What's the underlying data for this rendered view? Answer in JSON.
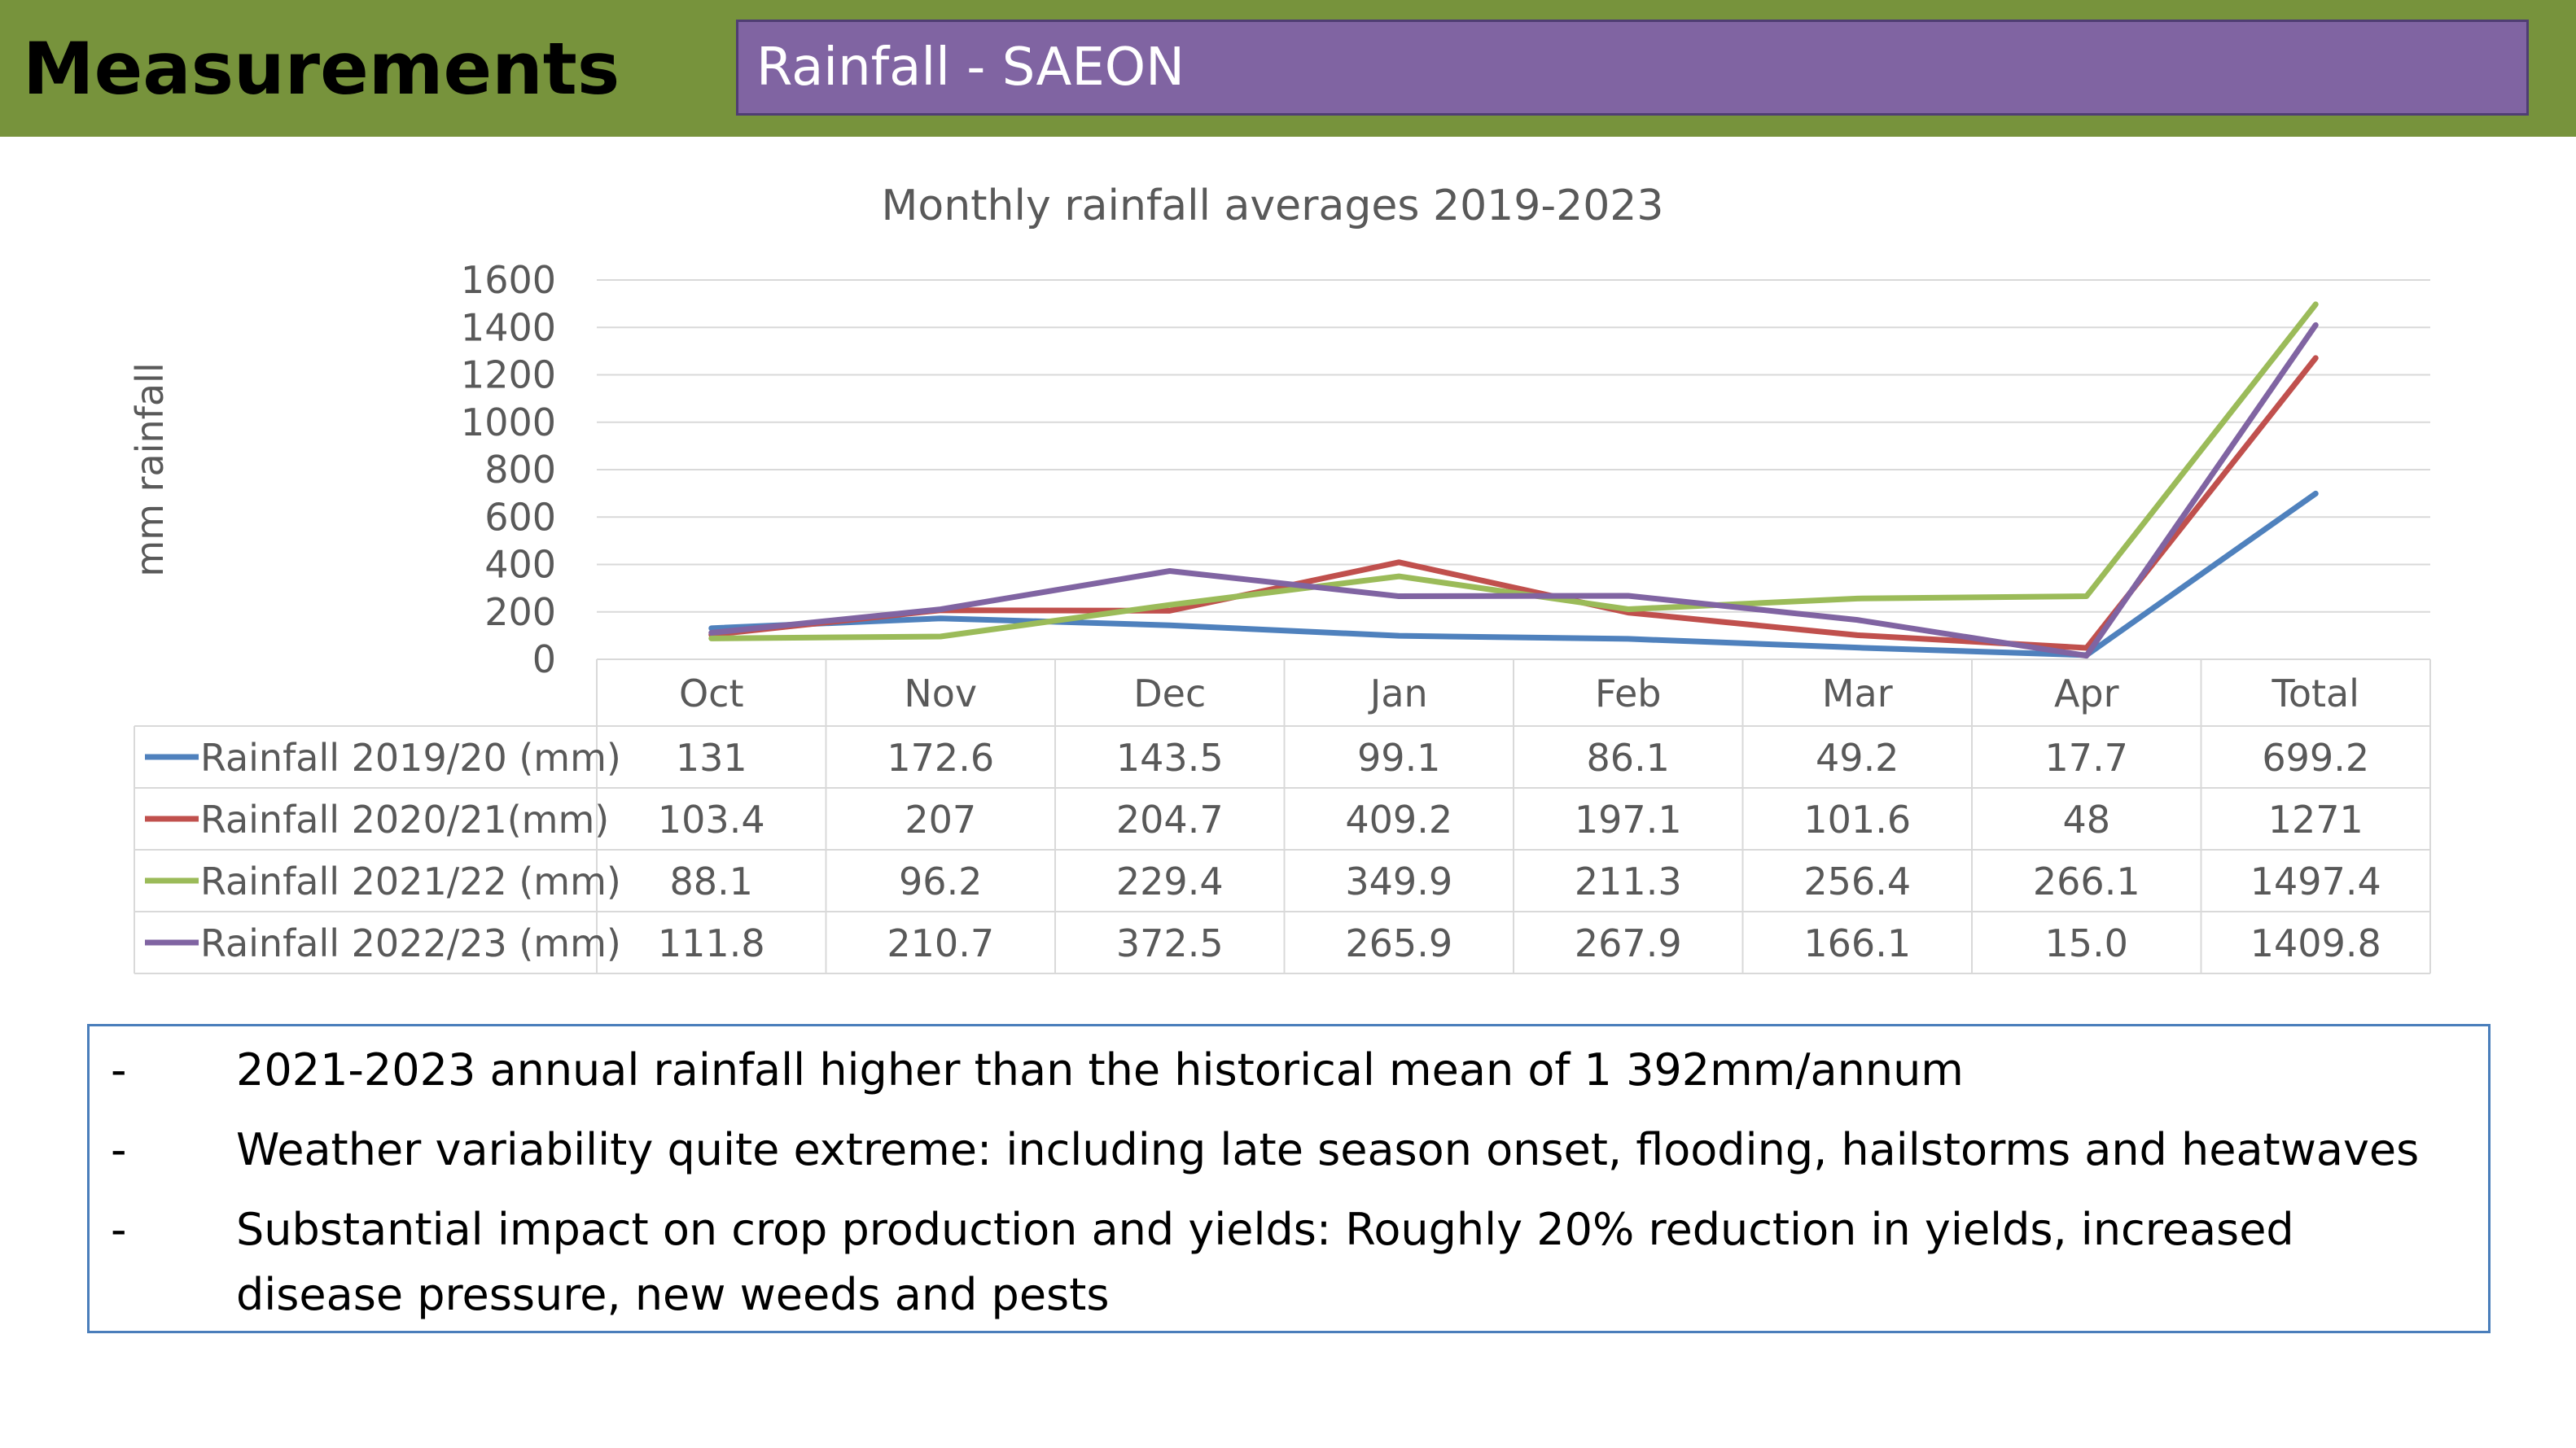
{
  "header": {
    "title": "Measurements",
    "subtitle": "Rainfall - SAEON"
  },
  "chart_data": {
    "type": "line",
    "title": "Monthly rainfall averages 2019-2023",
    "ylabel": "mm rainfall",
    "xlabel": "",
    "ylim": [
      0,
      1600
    ],
    "yticks": [
      0,
      200,
      400,
      600,
      800,
      1000,
      1200,
      1400,
      1600
    ],
    "grid": true,
    "legend": "data-table",
    "categories": [
      "Oct",
      "Nov",
      "Dec",
      "Jan",
      "Feb",
      "Mar",
      "Apr",
      "Total"
    ],
    "series": [
      {
        "name": "Rainfall 2019/20 (mm)",
        "color": "#4f81bd",
        "values": [
          131,
          172.6,
          143.5,
          99.1,
          86.1,
          49.2,
          17.7,
          699.2
        ],
        "labels": [
          "131",
          "172.6",
          "143.5",
          "99.1",
          "86.1",
          "49.2",
          "17.7",
          "699.2"
        ]
      },
      {
        "name": "Rainfall 2020/21(mm)",
        "color": "#c0504d",
        "values": [
          103.4,
          207,
          204.7,
          409.2,
          197.1,
          101.6,
          48,
          1271
        ],
        "labels": [
          "103.4",
          "207",
          "204.7",
          "409.2",
          "197.1",
          "101.6",
          "48",
          "1271"
        ]
      },
      {
        "name": "Rainfall 2021/22 (mm)",
        "color": "#9bbb59",
        "values": [
          88.1,
          96.2,
          229.4,
          349.9,
          211.3,
          256.4,
          266.1,
          1497.4
        ],
        "labels": [
          "88.1",
          "96.2",
          "229.4",
          "349.9",
          "211.3",
          "256.4",
          "266.1",
          "1497.4"
        ]
      },
      {
        "name": "Rainfall 2022/23 (mm)",
        "color": "#8064a2",
        "values": [
          111.8,
          210.7,
          372.5,
          265.9,
          267.9,
          166.1,
          15.0,
          1409.8
        ],
        "labels": [
          "111.8",
          "210.7",
          "372.5",
          "265.9",
          "267.9",
          "166.1",
          "15.0",
          "1409.8"
        ]
      }
    ]
  },
  "notes": [
    {
      "dash": "-",
      "text": "2021-2023 annual rainfall higher than the historical mean of 1 392mm/annum"
    },
    {
      "dash": "-",
      "text": "Weather variability quite extreme: including late season onset, flooding, hailstorms and heatwaves"
    },
    {
      "dash": "-",
      "text": "Substantial impact on crop production and yields: Roughly 20% reduction in yields, increased disease pressure, new weeds and pests"
    }
  ]
}
